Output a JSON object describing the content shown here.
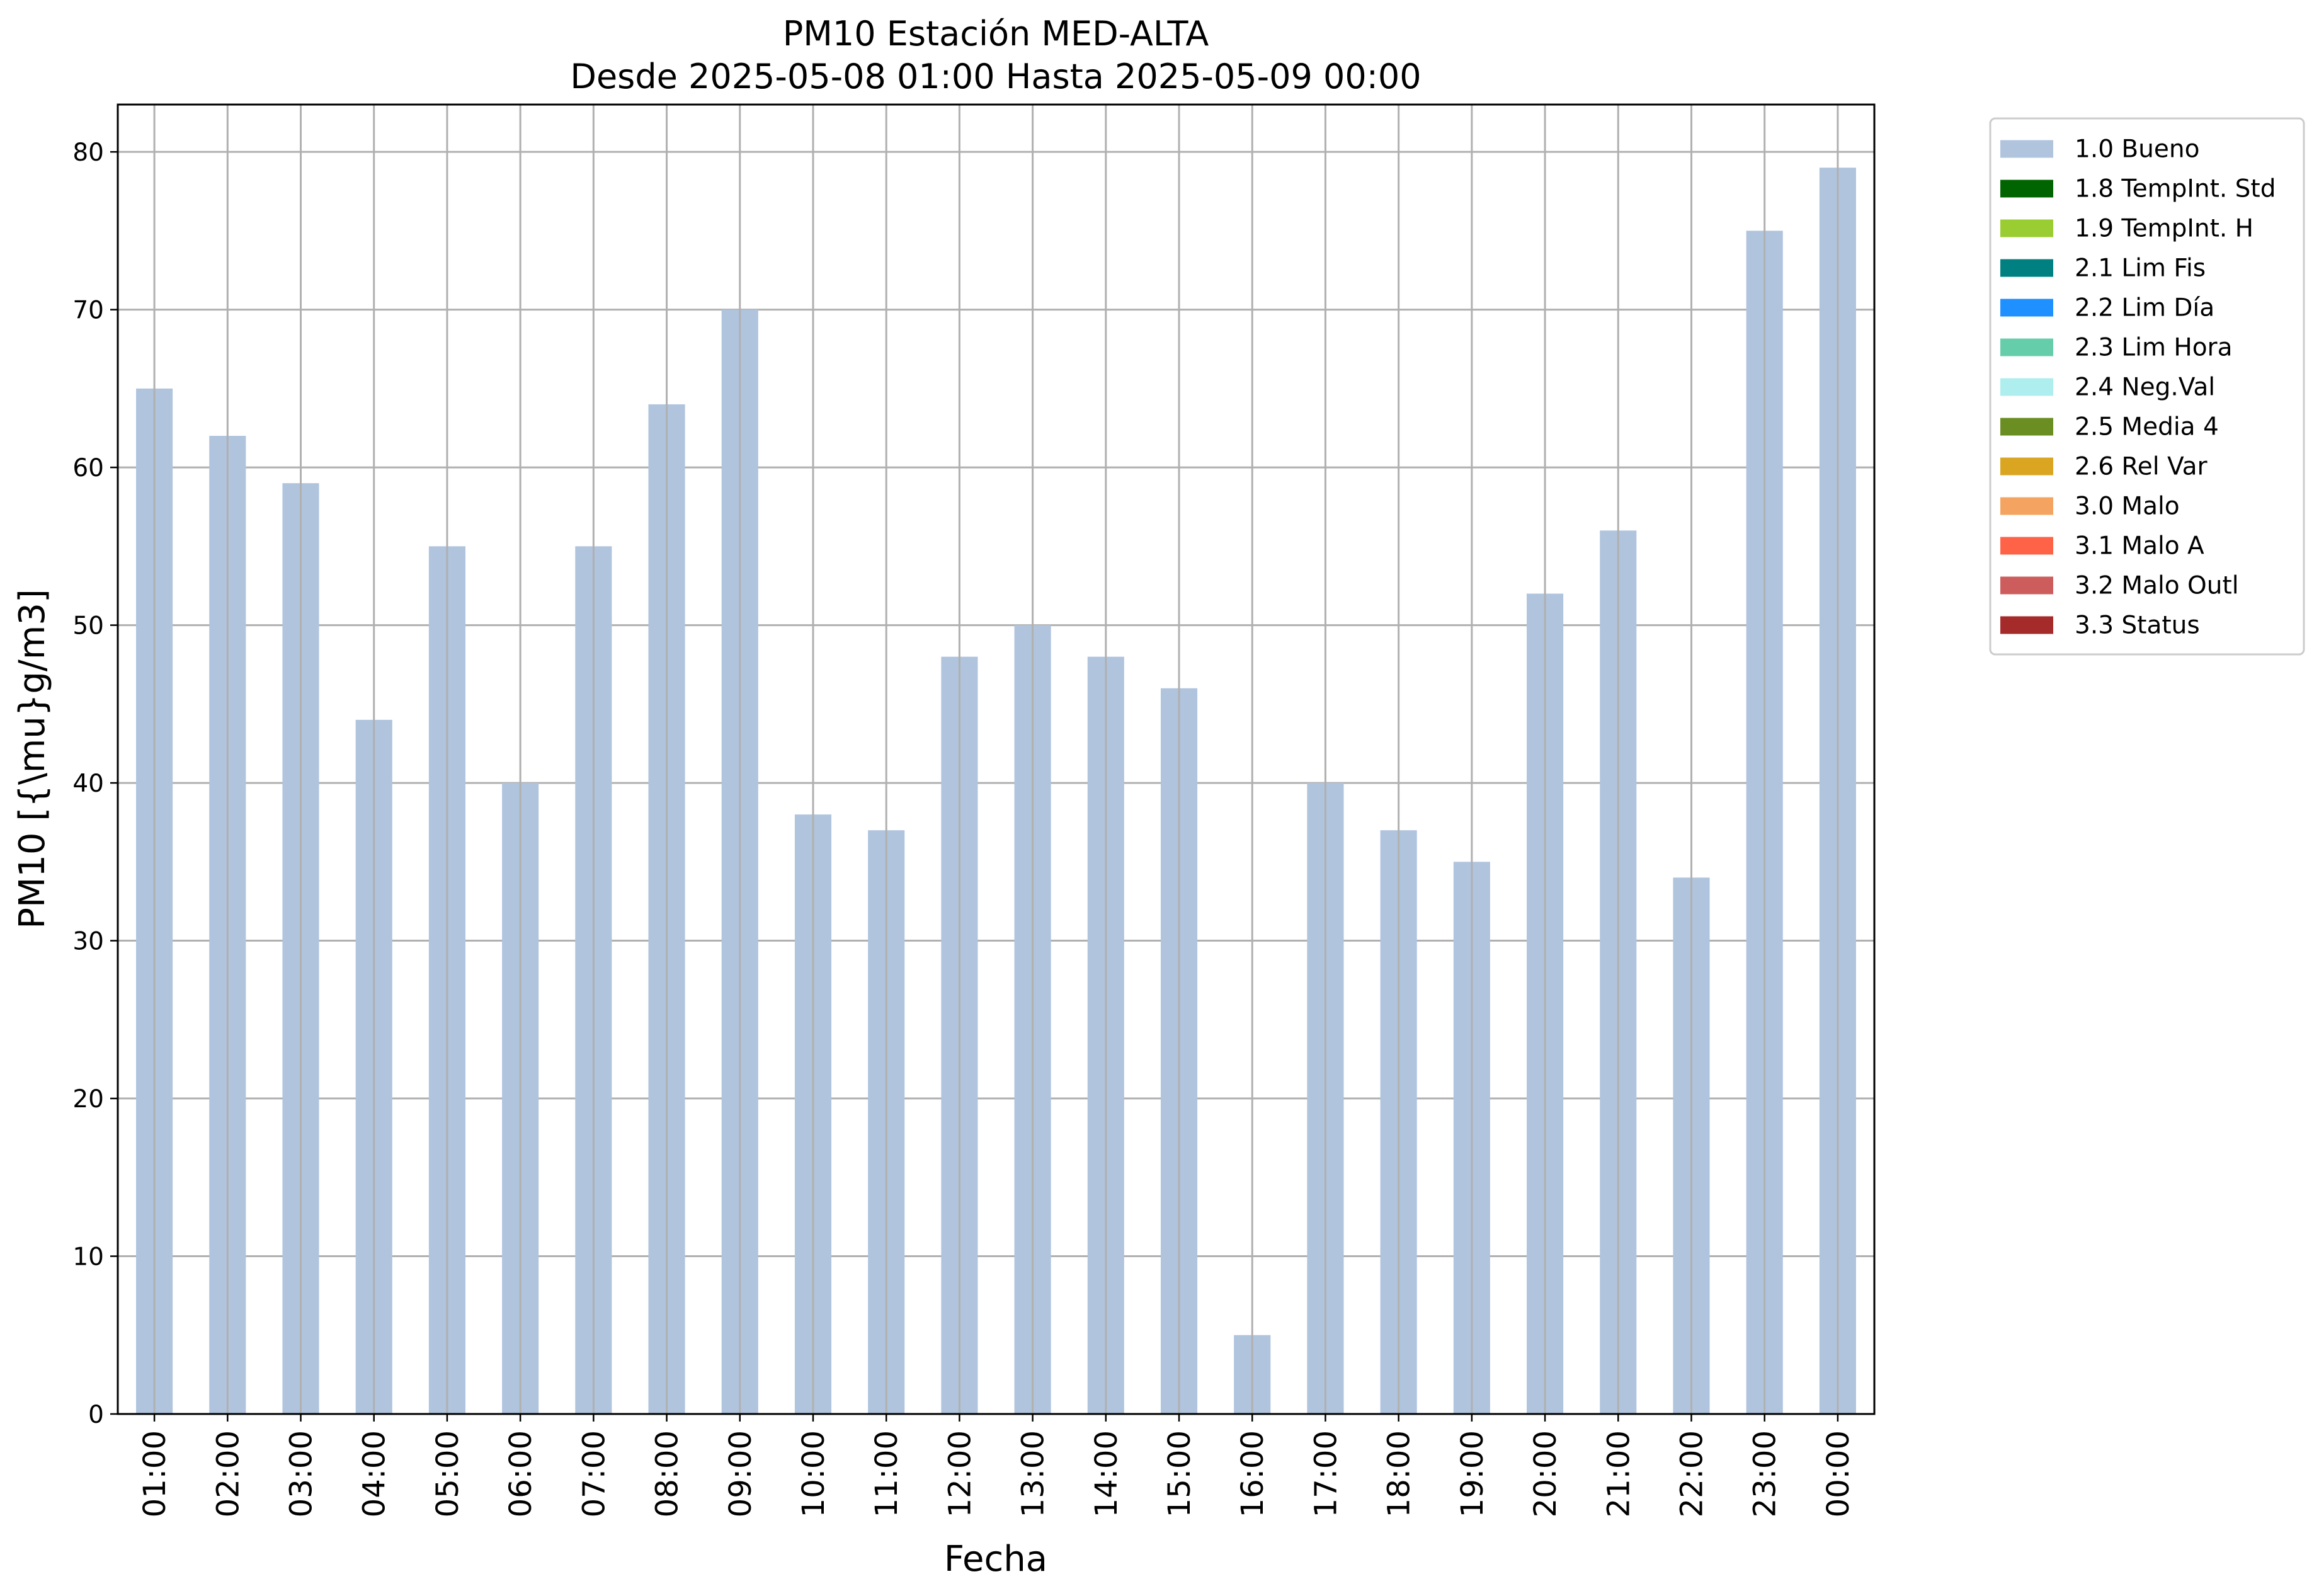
{
  "chart_data": {
    "type": "bar",
    "title": "PM10 Estación MED-ALTA",
    "subtitle": "Desde 2025-05-08 01:00 Hasta 2025-05-09 00:00",
    "xlabel": "Fecha",
    "ylabel": "PM10 [{\\mu}g/m3]",
    "ylim": [
      0,
      83
    ],
    "yticks": [
      0,
      10,
      20,
      30,
      40,
      50,
      60,
      70,
      80
    ],
    "grid": true,
    "legend_position": "outside-top-right",
    "categories": [
      "01:00",
      "02:00",
      "03:00",
      "04:00",
      "05:00",
      "06:00",
      "07:00",
      "08:00",
      "09:00",
      "10:00",
      "11:00",
      "12:00",
      "13:00",
      "14:00",
      "15:00",
      "16:00",
      "17:00",
      "18:00",
      "19:00",
      "20:00",
      "21:00",
      "22:00",
      "23:00",
      "00:00"
    ],
    "series": [
      {
        "name": "1.0 Bueno",
        "color": "#b0c4de",
        "values": [
          65,
          62,
          59,
          44,
          55,
          40,
          55,
          64,
          70,
          38,
          37,
          48,
          50,
          48,
          46,
          5,
          40,
          37,
          35,
          52,
          56,
          34,
          75,
          79
        ]
      }
    ],
    "legend": [
      {
        "label": "1.0 Bueno",
        "color": "#b0c4de"
      },
      {
        "label": "1.8 TempInt. Std",
        "color": "#006400"
      },
      {
        "label": "1.9 TempInt. H",
        "color": "#9acd32"
      },
      {
        "label": "2.1 Lim Fis",
        "color": "#008080"
      },
      {
        "label": "2.2 Lim Día",
        "color": "#1e90ff"
      },
      {
        "label": "2.3 Lim Hora",
        "color": "#66cdaa"
      },
      {
        "label": "2.4 Neg.Val",
        "color": "#afeeee"
      },
      {
        "label": "2.5 Media 4",
        "color": "#6b8e23"
      },
      {
        "label": "2.6 Rel Var",
        "color": "#daa520"
      },
      {
        "label": "3.0 Malo",
        "color": "#f4a460"
      },
      {
        "label": "3.1 Malo A",
        "color": "#ff6347"
      },
      {
        "label": "3.2 Malo Outl",
        "color": "#cd5c5c"
      },
      {
        "label": "3.3 Status",
        "color": "#a52a2a"
      }
    ]
  }
}
